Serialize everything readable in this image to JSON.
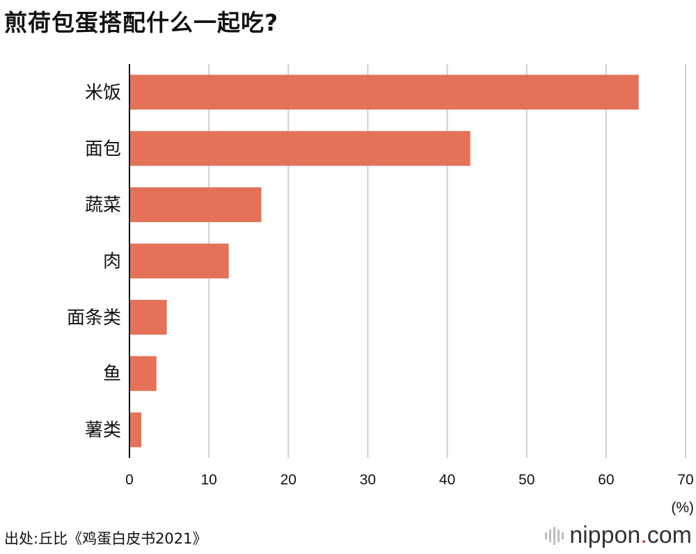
{
  "chart_data": {
    "type": "bar",
    "orientation": "horizontal",
    "title": "煎荷包蛋搭配什么一起吃?",
    "categories": [
      "米饭",
      "面包",
      "蔬菜",
      "肉",
      "面条类",
      "鱼",
      "薯类"
    ],
    "values": [
      64.1,
      42.9,
      16.6,
      12.5,
      4.7,
      3.4,
      1.5
    ],
    "xlim": [
      0,
      70
    ],
    "xticks": [
      "0",
      "10",
      "20",
      "30",
      "40",
      "50",
      "60",
      "70"
    ],
    "xunit": "(%)",
    "grid": true,
    "bar_color": "#e37259"
  },
  "source": "出处:丘比《鸡蛋白皮书2021》",
  "logo": {
    "name": "nippon",
    "dot": ".",
    "tld": "com"
  }
}
